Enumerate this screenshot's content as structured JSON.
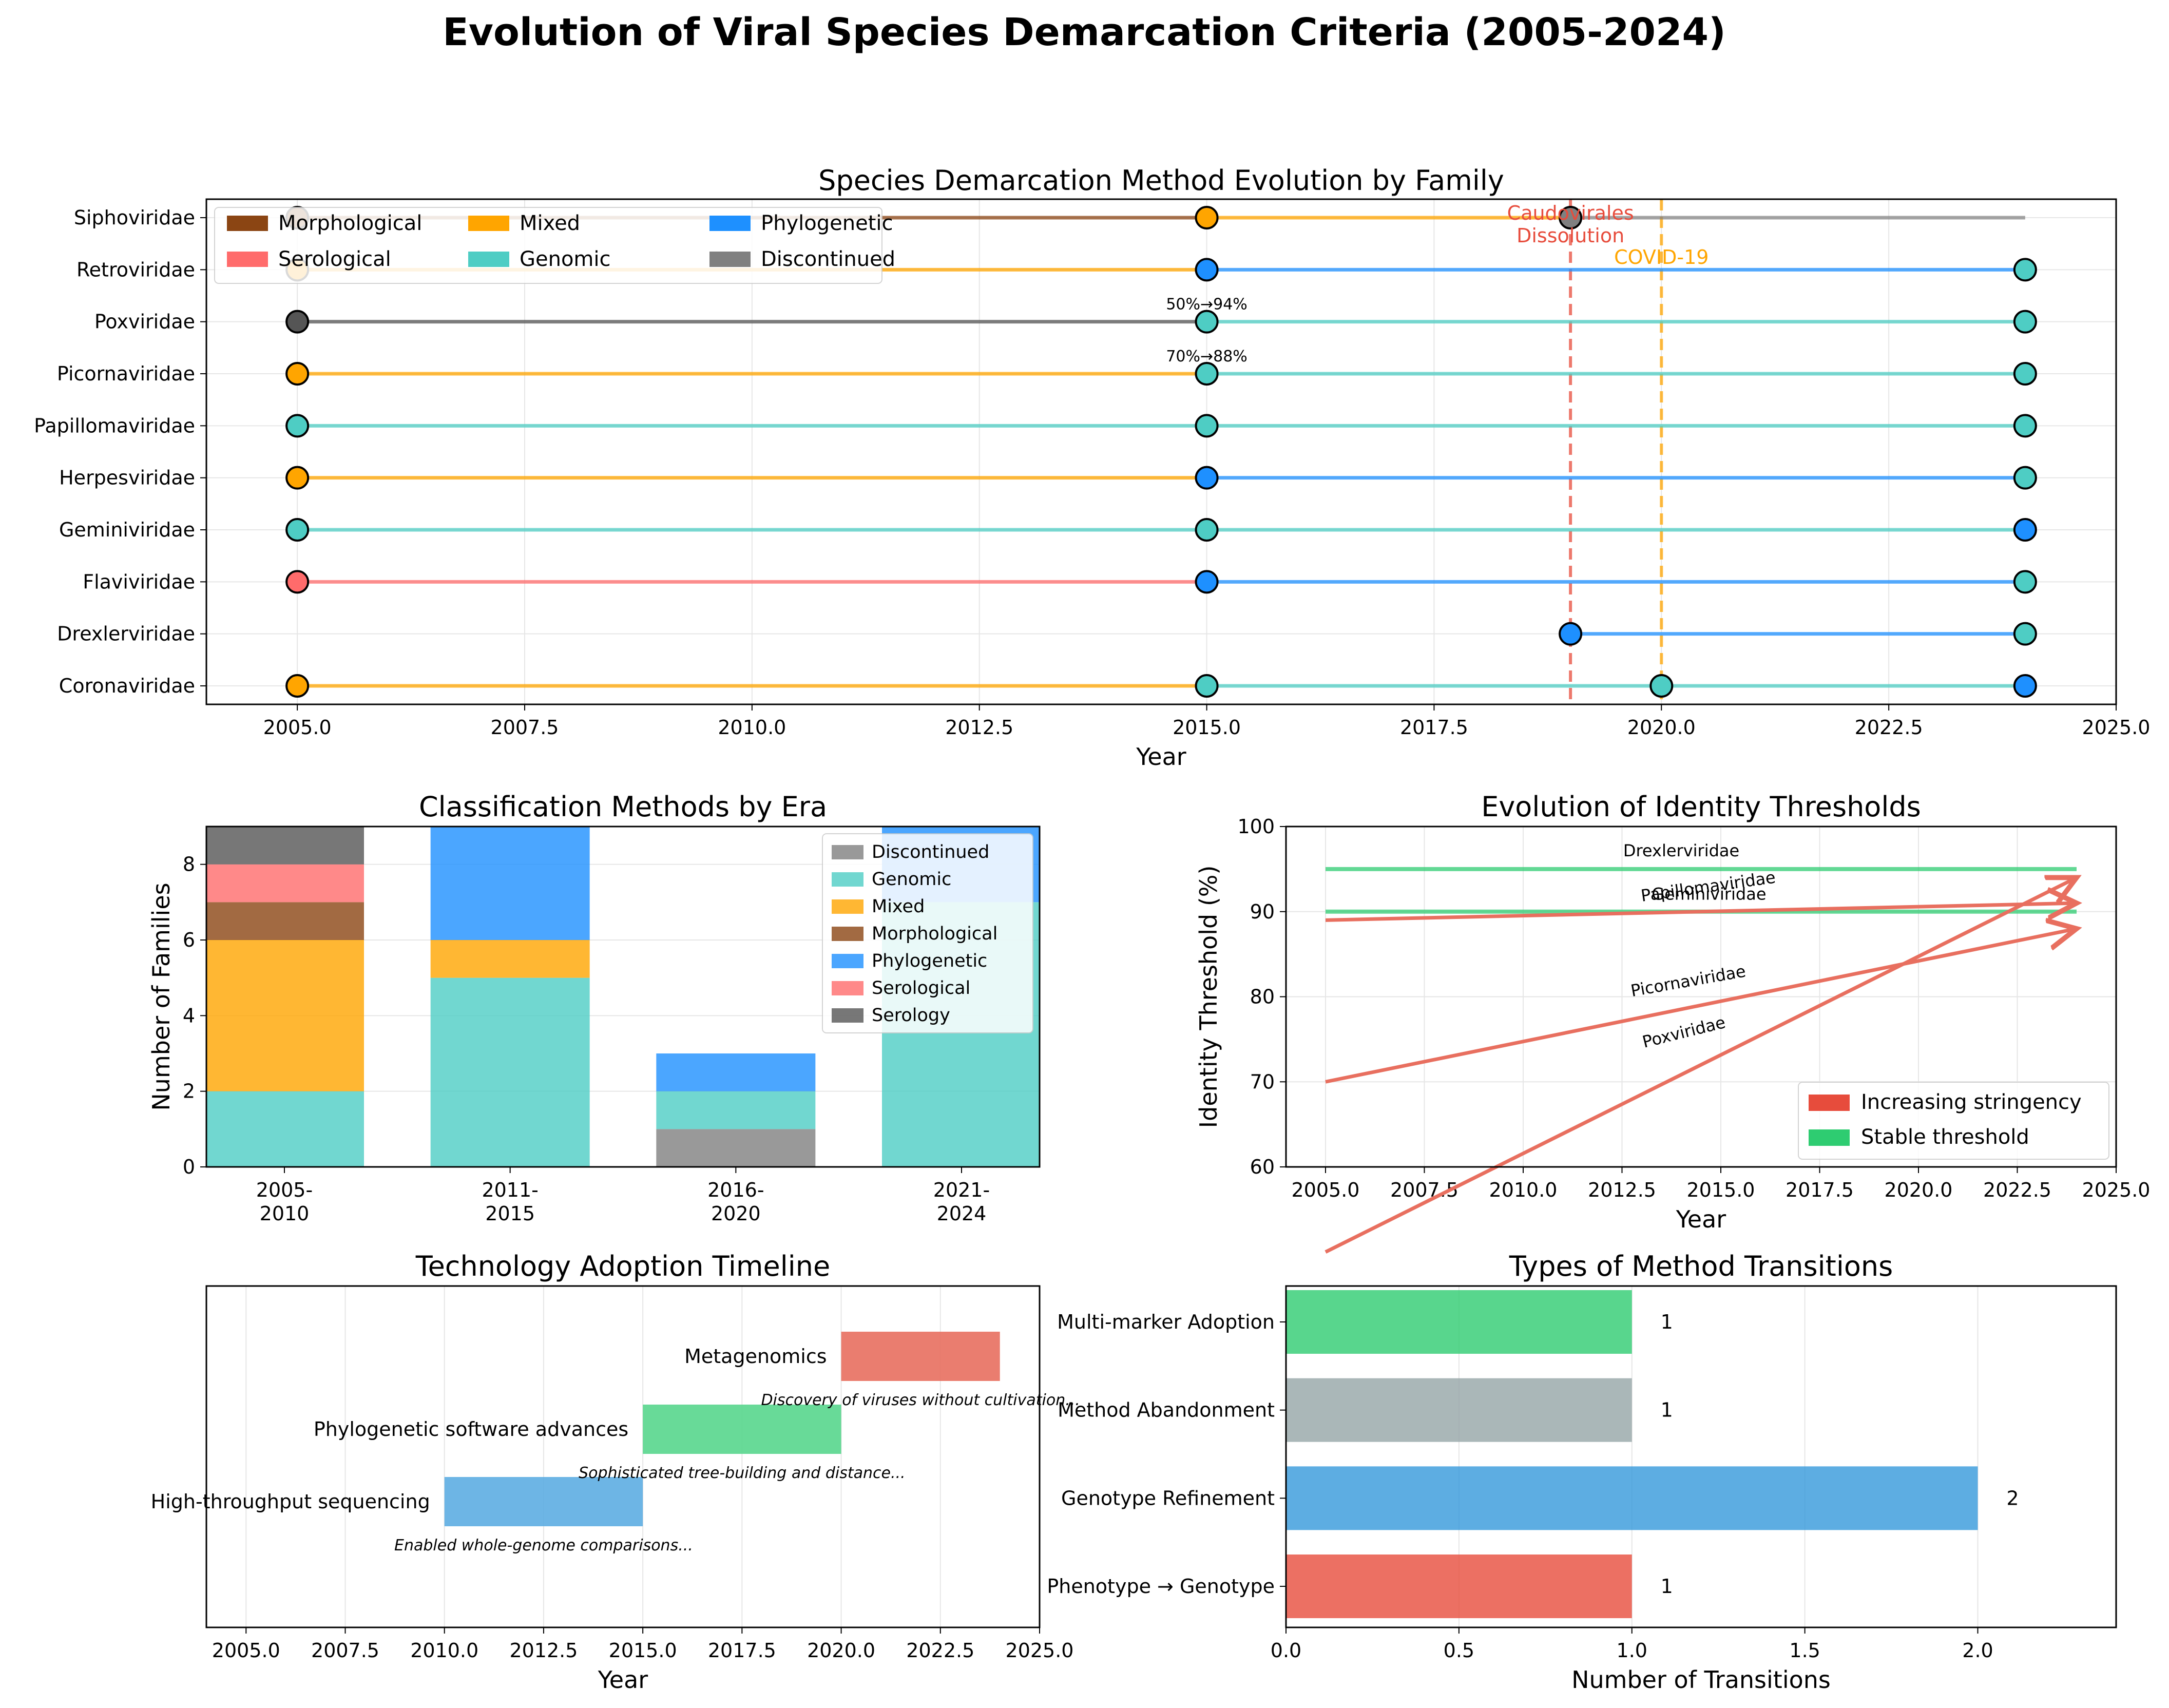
{
  "title": "Evolution of Viral Species Demarcation Criteria (2005-2024)",
  "colors": {
    "Morphological": "#8B4513",
    "Serological": "#FF6B6B",
    "Mixed": "#FFA500",
    "Genomic": "#4ECDC4",
    "Phylogenetic": "#1E90FF",
    "Discontinued": "#808080",
    "Serology": "#555555",
    "increasing": "#E74C3C",
    "stable": "#2ECC71",
    "pink_arrow": "#E86F5F",
    "tech1": "#5DADE2",
    "tech2": "#58D68D",
    "tech3": "#E86F5F",
    "trans_multi": "#2ECC71",
    "trans_aband": "#95A5A6",
    "trans_geno": "#3498DB",
    "trans_pheno": "#E74C3C"
  },
  "chart_data": [
    {
      "type": "timeline",
      "title": "Species Demarcation Method Evolution by Family",
      "xlabel": "Year",
      "xlim": [
        2004,
        2025
      ],
      "xticks": [
        "2005.0",
        "2007.5",
        "2010.0",
        "2012.5",
        "2015.0",
        "2017.5",
        "2020.0",
        "2022.5",
        "2025.0"
      ],
      "legend": [
        "Morphological",
        "Serological",
        "Mixed",
        "Genomic",
        "Phylogenetic",
        "Discontinued"
      ],
      "legend_placement": "upper-left",
      "families": [
        {
          "name": "Coronaviridae",
          "points": [
            [
              2005,
              "Mixed"
            ],
            [
              2015,
              "Genomic"
            ],
            [
              2020,
              "Genomic"
            ],
            [
              2024,
              "Phylogenetic"
            ]
          ]
        },
        {
          "name": "Drexlerviridae",
          "points": [
            [
              2019,
              "Phylogenetic"
            ],
            [
              2024,
              "Genomic"
            ]
          ]
        },
        {
          "name": "Flaviviridae",
          "points": [
            [
              2005,
              "Serological"
            ],
            [
              2015,
              "Phylogenetic"
            ],
            [
              2024,
              "Genomic"
            ]
          ]
        },
        {
          "name": "Geminiviridae",
          "points": [
            [
              2005,
              "Genomic"
            ],
            [
              2015,
              "Genomic"
            ],
            [
              2024,
              "Phylogenetic"
            ]
          ]
        },
        {
          "name": "Herpesviridae",
          "points": [
            [
              2005,
              "Mixed"
            ],
            [
              2015,
              "Phylogenetic"
            ],
            [
              2024,
              "Genomic"
            ]
          ]
        },
        {
          "name": "Papillomaviridae",
          "points": [
            [
              2005,
              "Genomic"
            ],
            [
              2015,
              "Genomic"
            ],
            [
              2024,
              "Genomic"
            ]
          ]
        },
        {
          "name": "Picornaviridae",
          "points": [
            [
              2005,
              "Mixed"
            ],
            [
              2015,
              "Genomic"
            ],
            [
              2024,
              "Genomic"
            ]
          ]
        },
        {
          "name": "Poxviridae",
          "points": [
            [
              2005,
              "Serology"
            ],
            [
              2015,
              "Genomic"
            ],
            [
              2024,
              "Genomic"
            ]
          ]
        },
        {
          "name": "Retroviridae",
          "points": [
            [
              2005,
              "Mixed"
            ],
            [
              2015,
              "Phylogenetic"
            ],
            [
              2024,
              "Genomic"
            ]
          ]
        },
        {
          "name": "Siphoviridae",
          "points": [
            [
              2005,
              "Morphological"
            ],
            [
              2015,
              "Mixed"
            ],
            [
              2019,
              "Discontinued"
            ]
          ],
          "end": 2024
        }
      ],
      "vlines": [
        {
          "x": 2019,
          "label": "Caudovirales\nDissolution",
          "color": "#E74C3C"
        },
        {
          "x": 2020,
          "label": "COVID-19",
          "color": "#FFA500"
        }
      ],
      "point_labels": [
        {
          "family": "Poxviridae",
          "x": 2015,
          "text": "50%→94%"
        },
        {
          "family": "Picornaviridae",
          "x": 2015,
          "text": "70%→88%"
        }
      ]
    },
    {
      "type": "bar",
      "stacked": true,
      "title": "Classification Methods by Era",
      "ylabel": "Number of Families",
      "ylim": [
        0,
        9
      ],
      "yticks": [
        "0",
        "2",
        "4",
        "6",
        "8"
      ],
      "categories": [
        "2005-\n2010",
        "2011-\n2015",
        "2016-\n2020",
        "2021-\n2024"
      ],
      "legend_placement": "upper-right",
      "series": [
        {
          "name": "Discontinued",
          "color": "#808080",
          "values": [
            0,
            0,
            1,
            0
          ]
        },
        {
          "name": "Genomic",
          "color": "#4ECDC4",
          "values": [
            2,
            5,
            1,
            7
          ]
        },
        {
          "name": "Mixed",
          "color": "#FFA500",
          "values": [
            4,
            1,
            0,
            0
          ]
        },
        {
          "name": "Morphological",
          "color": "#8B4513",
          "values": [
            1,
            0,
            0,
            0
          ]
        },
        {
          "name": "Phylogenetic",
          "color": "#1E90FF",
          "values": [
            0,
            3,
            1,
            3
          ]
        },
        {
          "name": "Serological",
          "color": "#FF6B6B",
          "values": [
            1,
            0,
            0,
            0
          ]
        },
        {
          "name": "Serology",
          "color": "#555555",
          "values": [
            1,
            0,
            0,
            0
          ]
        }
      ]
    },
    {
      "type": "line",
      "title": "Evolution of Identity Thresholds",
      "xlabel": "Year",
      "ylabel": "Identity Threshold (%)",
      "xlim": [
        2004,
        2025
      ],
      "ylim": [
        60,
        100
      ],
      "xticks": [
        "2005.0",
        "2007.5",
        "2010.0",
        "2012.5",
        "2015.0",
        "2017.5",
        "2020.0",
        "2022.5",
        "2025.0"
      ],
      "yticks": [
        "60",
        "70",
        "80",
        "90",
        "100"
      ],
      "legend": [
        "Increasing stringency",
        "Stable threshold"
      ],
      "legend_placement": "lower-right",
      "series": [
        {
          "name": "Drexlerviridae",
          "x": [
            2005,
            2024
          ],
          "y": [
            95,
            95
          ],
          "kind": "stable",
          "label_at": [
            2014,
            96.5
          ],
          "label_rot": 0
        },
        {
          "name": "Geminiviridae",
          "x": [
            2005,
            2024
          ],
          "y": [
            90,
            90
          ],
          "kind": "stable",
          "label_at": [
            2014.7,
            91.4
          ],
          "label_rot": 0
        },
        {
          "name": "Papillomaviridae",
          "x": [
            2005,
            2024
          ],
          "y": [
            89,
            91
          ],
          "kind": "increasing",
          "label_at": [
            2014.7,
            92.3
          ],
          "label_rot": -8
        },
        {
          "name": "Picornaviridae",
          "x": [
            2005,
            2024
          ],
          "y": [
            70,
            88
          ],
          "kind": "increasing",
          "label_at": [
            2014.2,
            81.2
          ],
          "label_rot": -10
        },
        {
          "name": "Poxviridae",
          "x": [
            2005,
            2024
          ],
          "y": [
            50,
            94
          ],
          "kind": "increasing",
          "label_at": [
            2014.1,
            75.2
          ],
          "label_rot": -14
        }
      ]
    },
    {
      "type": "bar",
      "orientation": "horizontal",
      "title": "Technology Adoption Timeline",
      "xlabel": "Year",
      "xlim": [
        2004,
        2025
      ],
      "xticks": [
        "2005.0",
        "2007.5",
        "2010.0",
        "2012.5",
        "2015.0",
        "2017.5",
        "2020.0",
        "2022.5",
        "2025.0"
      ],
      "items": [
        {
          "name": "High-throughput sequencing",
          "start": 2010,
          "end": 2015,
          "note": "Enabled whole-genome comparisons...",
          "color": "#5DADE2"
        },
        {
          "name": "Phylogenetic software advances",
          "start": 2015,
          "end": 2020,
          "note": "Sophisticated tree-building and distance...",
          "color": "#58D68D"
        },
        {
          "name": "Metagenomics",
          "start": 2020,
          "end": 2024,
          "note": "Discovery of viruses without cultivation...",
          "color": "#E86F5F"
        }
      ]
    },
    {
      "type": "bar",
      "orientation": "horizontal",
      "title": "Types of Method Transitions",
      "xlabel": "Number of Transitions",
      "xlim": [
        0,
        2.4
      ],
      "xticks": [
        "0.0",
        "0.5",
        "1.0",
        "1.5",
        "2.0"
      ],
      "categories": [
        "Phenotype → Genotype",
        "Genotype Refinement",
        "Method Abandonment",
        "Multi-marker Adoption"
      ],
      "values": [
        1,
        2,
        1,
        1
      ],
      "colors": [
        "#E74C3C",
        "#3498DB",
        "#95A5A6",
        "#2ECC71"
      ]
    }
  ]
}
